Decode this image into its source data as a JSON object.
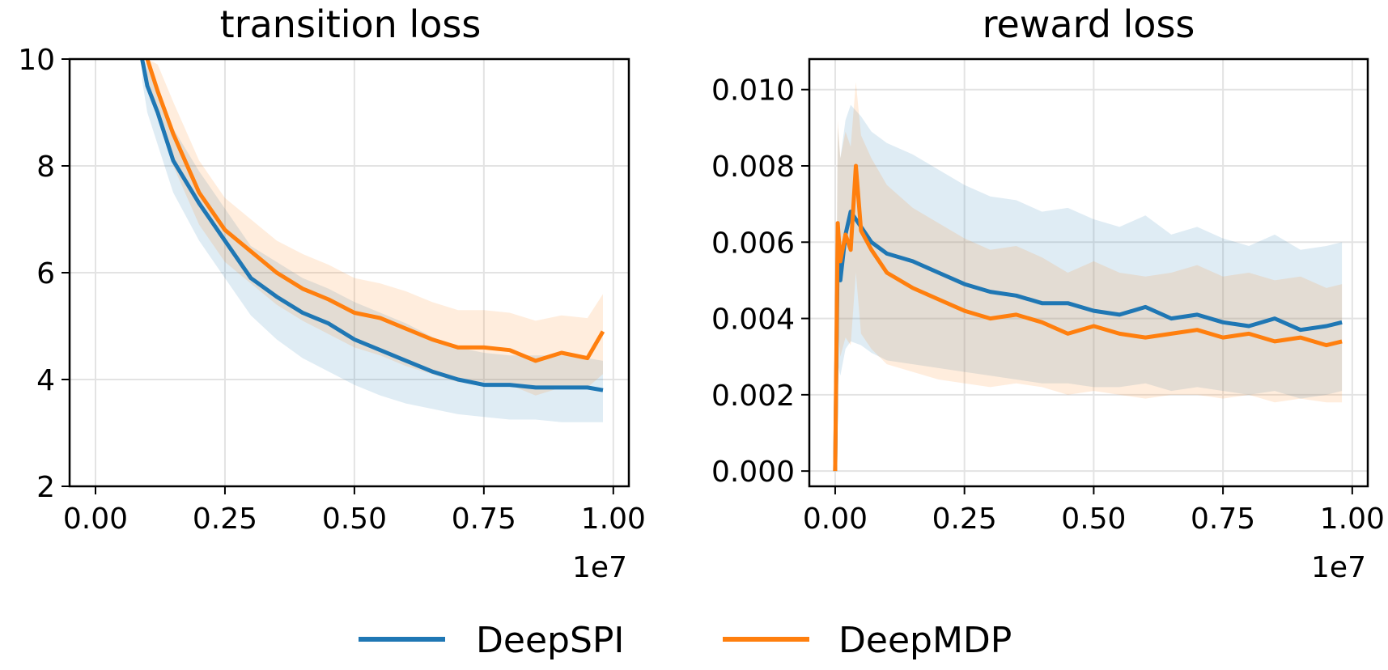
{
  "legend": {
    "items": [
      {
        "label": "DeepSPI",
        "color": "#1f77b4"
      },
      {
        "label": "DeepMDP",
        "color": "#ff7f0e"
      }
    ]
  },
  "chart_data": [
    {
      "type": "line",
      "title": "transition loss",
      "xlabel": "",
      "ylabel": "",
      "xlim": [
        -0.05,
        1.03
      ],
      "ylim": [
        2,
        10
      ],
      "xticks": [
        0.0,
        0.25,
        0.5,
        0.75,
        1.0
      ],
      "xtick_labels": [
        "0.00",
        "0.25",
        "0.50",
        "0.75",
        "1.00"
      ],
      "yticks": [
        2,
        4,
        6,
        8,
        10
      ],
      "ytick_labels": [
        "2",
        "4",
        "6",
        "8",
        "10"
      ],
      "x_offset_label": "1e7",
      "grid": true,
      "series": [
        {
          "name": "DeepSPI",
          "color": "#1f77b4",
          "x": [
            0.09,
            0.1,
            0.12,
            0.15,
            0.2,
            0.25,
            0.3,
            0.35,
            0.4,
            0.45,
            0.5,
            0.55,
            0.6,
            0.65,
            0.7,
            0.75,
            0.8,
            0.85,
            0.9,
            0.95,
            0.98
          ],
          "y": [
            10.0,
            9.5,
            9.0,
            8.1,
            7.3,
            6.6,
            5.9,
            5.55,
            5.25,
            5.05,
            4.75,
            4.55,
            4.35,
            4.15,
            4.0,
            3.9,
            3.9,
            3.85,
            3.85,
            3.85,
            3.8
          ],
          "band_low": [
            9.6,
            9.0,
            8.4,
            7.5,
            6.6,
            5.9,
            5.2,
            4.75,
            4.4,
            4.15,
            3.9,
            3.7,
            3.55,
            3.45,
            3.35,
            3.3,
            3.25,
            3.25,
            3.2,
            3.2,
            3.2
          ],
          "band_high": [
            10.0,
            9.9,
            9.5,
            8.7,
            7.9,
            7.2,
            6.5,
            6.2,
            5.9,
            5.7,
            5.45,
            5.25,
            5.05,
            4.8,
            4.6,
            4.5,
            4.45,
            4.45,
            4.45,
            4.4,
            4.35
          ]
        },
        {
          "name": "DeepMDP",
          "color": "#ff7f0e",
          "x": [
            0.1,
            0.12,
            0.15,
            0.2,
            0.25,
            0.3,
            0.35,
            0.4,
            0.45,
            0.5,
            0.55,
            0.6,
            0.65,
            0.7,
            0.75,
            0.8,
            0.85,
            0.9,
            0.95,
            0.98
          ],
          "y": [
            10.0,
            9.4,
            8.6,
            7.5,
            6.8,
            6.4,
            6.0,
            5.7,
            5.5,
            5.25,
            5.15,
            4.95,
            4.75,
            4.6,
            4.6,
            4.55,
            4.35,
            4.5,
            4.4,
            4.9
          ],
          "band_low": [
            9.6,
            8.9,
            8.0,
            6.9,
            6.2,
            5.8,
            5.4,
            5.1,
            4.85,
            4.6,
            4.45,
            4.25,
            4.1,
            3.95,
            3.95,
            3.9,
            3.7,
            3.85,
            3.85,
            4.1
          ],
          "band_high": [
            10.0,
            9.9,
            9.2,
            8.1,
            7.4,
            7.0,
            6.6,
            6.35,
            6.15,
            5.9,
            5.8,
            5.65,
            5.45,
            5.3,
            5.3,
            5.25,
            5.1,
            5.2,
            5.15,
            5.6
          ]
        }
      ]
    },
    {
      "type": "line",
      "title": "reward loss",
      "xlabel": "",
      "ylabel": "",
      "xlim": [
        -0.05,
        1.03
      ],
      "ylim": [
        -0.0004,
        0.0108
      ],
      "xticks": [
        0.0,
        0.25,
        0.5,
        0.75,
        1.0
      ],
      "xtick_labels": [
        "0.00",
        "0.25",
        "0.50",
        "0.75",
        "1.00"
      ],
      "yticks": [
        0.0,
        0.002,
        0.004,
        0.006,
        0.008,
        0.01
      ],
      "ytick_labels": [
        "0.000",
        "0.002",
        "0.004",
        "0.006",
        "0.008",
        "0.010"
      ],
      "x_offset_label": "1e7",
      "grid": true,
      "series": [
        {
          "name": "DeepSPI",
          "color": "#1f77b4",
          "x": [
            0.0,
            0.005,
            0.01,
            0.02,
            0.03,
            0.05,
            0.07,
            0.1,
            0.15,
            0.2,
            0.25,
            0.3,
            0.35,
            0.4,
            0.45,
            0.5,
            0.55,
            0.6,
            0.65,
            0.7,
            0.75,
            0.8,
            0.85,
            0.9,
            0.95,
            0.98
          ],
          "y": [
            0.0,
            0.0058,
            0.005,
            0.0062,
            0.0068,
            0.0064,
            0.006,
            0.0057,
            0.0055,
            0.0052,
            0.0049,
            0.0047,
            0.0046,
            0.0044,
            0.0044,
            0.0042,
            0.0041,
            0.0043,
            0.004,
            0.0041,
            0.0039,
            0.0038,
            0.004,
            0.0037,
            0.0038,
            0.0039
          ],
          "band_low": [
            0.0,
            0.0028,
            0.0025,
            0.0032,
            0.0034,
            0.0033,
            0.0031,
            0.0029,
            0.0028,
            0.0027,
            0.0026,
            0.0025,
            0.0024,
            0.0023,
            0.0023,
            0.0022,
            0.0022,
            0.0023,
            0.0021,
            0.0022,
            0.0021,
            0.002,
            0.0021,
            0.0019,
            0.002,
            0.0021
          ],
          "band_high": [
            0.0,
            0.009,
            0.0082,
            0.0092,
            0.0096,
            0.0093,
            0.0089,
            0.0086,
            0.0083,
            0.0079,
            0.0075,
            0.0072,
            0.0071,
            0.0068,
            0.0069,
            0.0066,
            0.0064,
            0.0067,
            0.0062,
            0.0064,
            0.0061,
            0.0059,
            0.0062,
            0.0058,
            0.0059,
            0.006
          ]
        },
        {
          "name": "DeepMDP",
          "color": "#ff7f0e",
          "x": [
            0.0,
            0.005,
            0.01,
            0.02,
            0.03,
            0.04,
            0.05,
            0.07,
            0.1,
            0.15,
            0.2,
            0.25,
            0.3,
            0.35,
            0.4,
            0.45,
            0.5,
            0.55,
            0.6,
            0.65,
            0.7,
            0.75,
            0.8,
            0.85,
            0.9,
            0.95,
            0.98
          ],
          "y": [
            0.0,
            0.0065,
            0.0055,
            0.0062,
            0.0058,
            0.008,
            0.0063,
            0.0058,
            0.0052,
            0.0048,
            0.0045,
            0.0042,
            0.004,
            0.0041,
            0.0039,
            0.0036,
            0.0038,
            0.0036,
            0.0035,
            0.0036,
            0.0037,
            0.0035,
            0.0036,
            0.0034,
            0.0035,
            0.0033,
            0.0034
          ],
          "band_low": [
            0.0,
            0.0038,
            0.003,
            0.0035,
            0.0033,
            0.0052,
            0.0036,
            0.0032,
            0.0028,
            0.0026,
            0.0024,
            0.0023,
            0.0022,
            0.0023,
            0.0022,
            0.002,
            0.0021,
            0.002,
            0.0019,
            0.002,
            0.002,
            0.0019,
            0.002,
            0.0018,
            0.0019,
            0.0018,
            0.0018
          ],
          "band_high": [
            0.0,
            0.0092,
            0.0082,
            0.0089,
            0.0085,
            0.0102,
            0.0088,
            0.0082,
            0.0075,
            0.0069,
            0.0065,
            0.0061,
            0.0058,
            0.0059,
            0.0056,
            0.0052,
            0.0055,
            0.0052,
            0.0051,
            0.0052,
            0.0054,
            0.0051,
            0.0052,
            0.005,
            0.0051,
            0.0048,
            0.0049
          ]
        }
      ]
    }
  ]
}
